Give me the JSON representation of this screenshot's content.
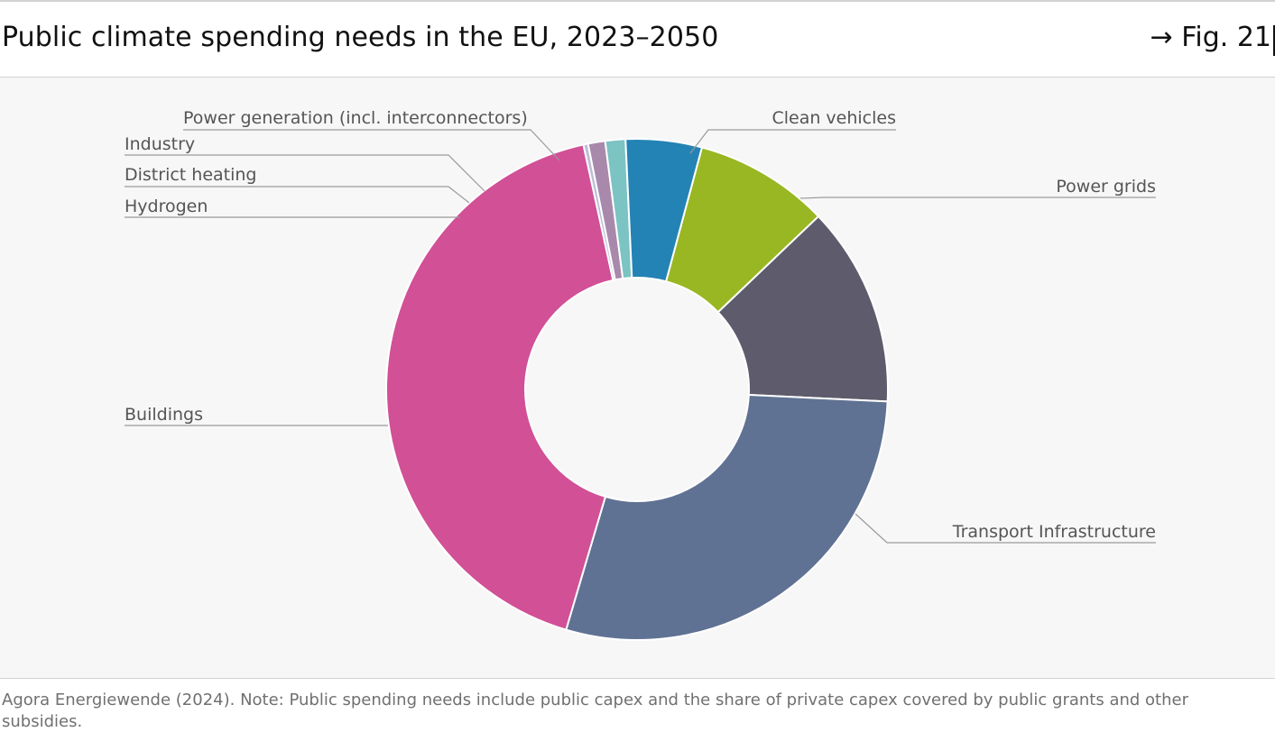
{
  "header": {
    "title": "Public climate spending needs in the EU, 2023–2050",
    "fig_ref": "→ Fig. 21"
  },
  "source": "Agora Energiewende (2024). Note: Public spending needs include public capex and the share of private capex covered by public grants and other subsidies.",
  "colors": {
    "plot_background": "#f7f7f7",
    "leader_line": "#9a9a9a",
    "label_text": "#555555"
  },
  "chart_data": {
    "type": "pie",
    "variant": "donut",
    "unit": "share of total",
    "slices": [
      {
        "name": "Clean vehicles",
        "value": 8.7,
        "color": "#98b722"
      },
      {
        "name": "Power grids",
        "value": 12.9,
        "color": "#5d5b6c"
      },
      {
        "name": "Transport Infrastructure",
        "value": 28.8,
        "color": "#607293"
      },
      {
        "name": "Buildings",
        "value": 42.0,
        "color": "#d15096"
      },
      {
        "name": "Hydrogen",
        "value": 0.3,
        "color": "#bdbdd6"
      },
      {
        "name": "District heating",
        "value": 1.1,
        "color": "#a889ac"
      },
      {
        "name": "Industry",
        "value": 1.3,
        "color": "#7cc3c3"
      },
      {
        "name": "Power generation (incl. interconnectors)",
        "value": 4.9,
        "color": "#2383b5"
      }
    ],
    "start_angle_deg": 15,
    "direction": "clockwise"
  }
}
